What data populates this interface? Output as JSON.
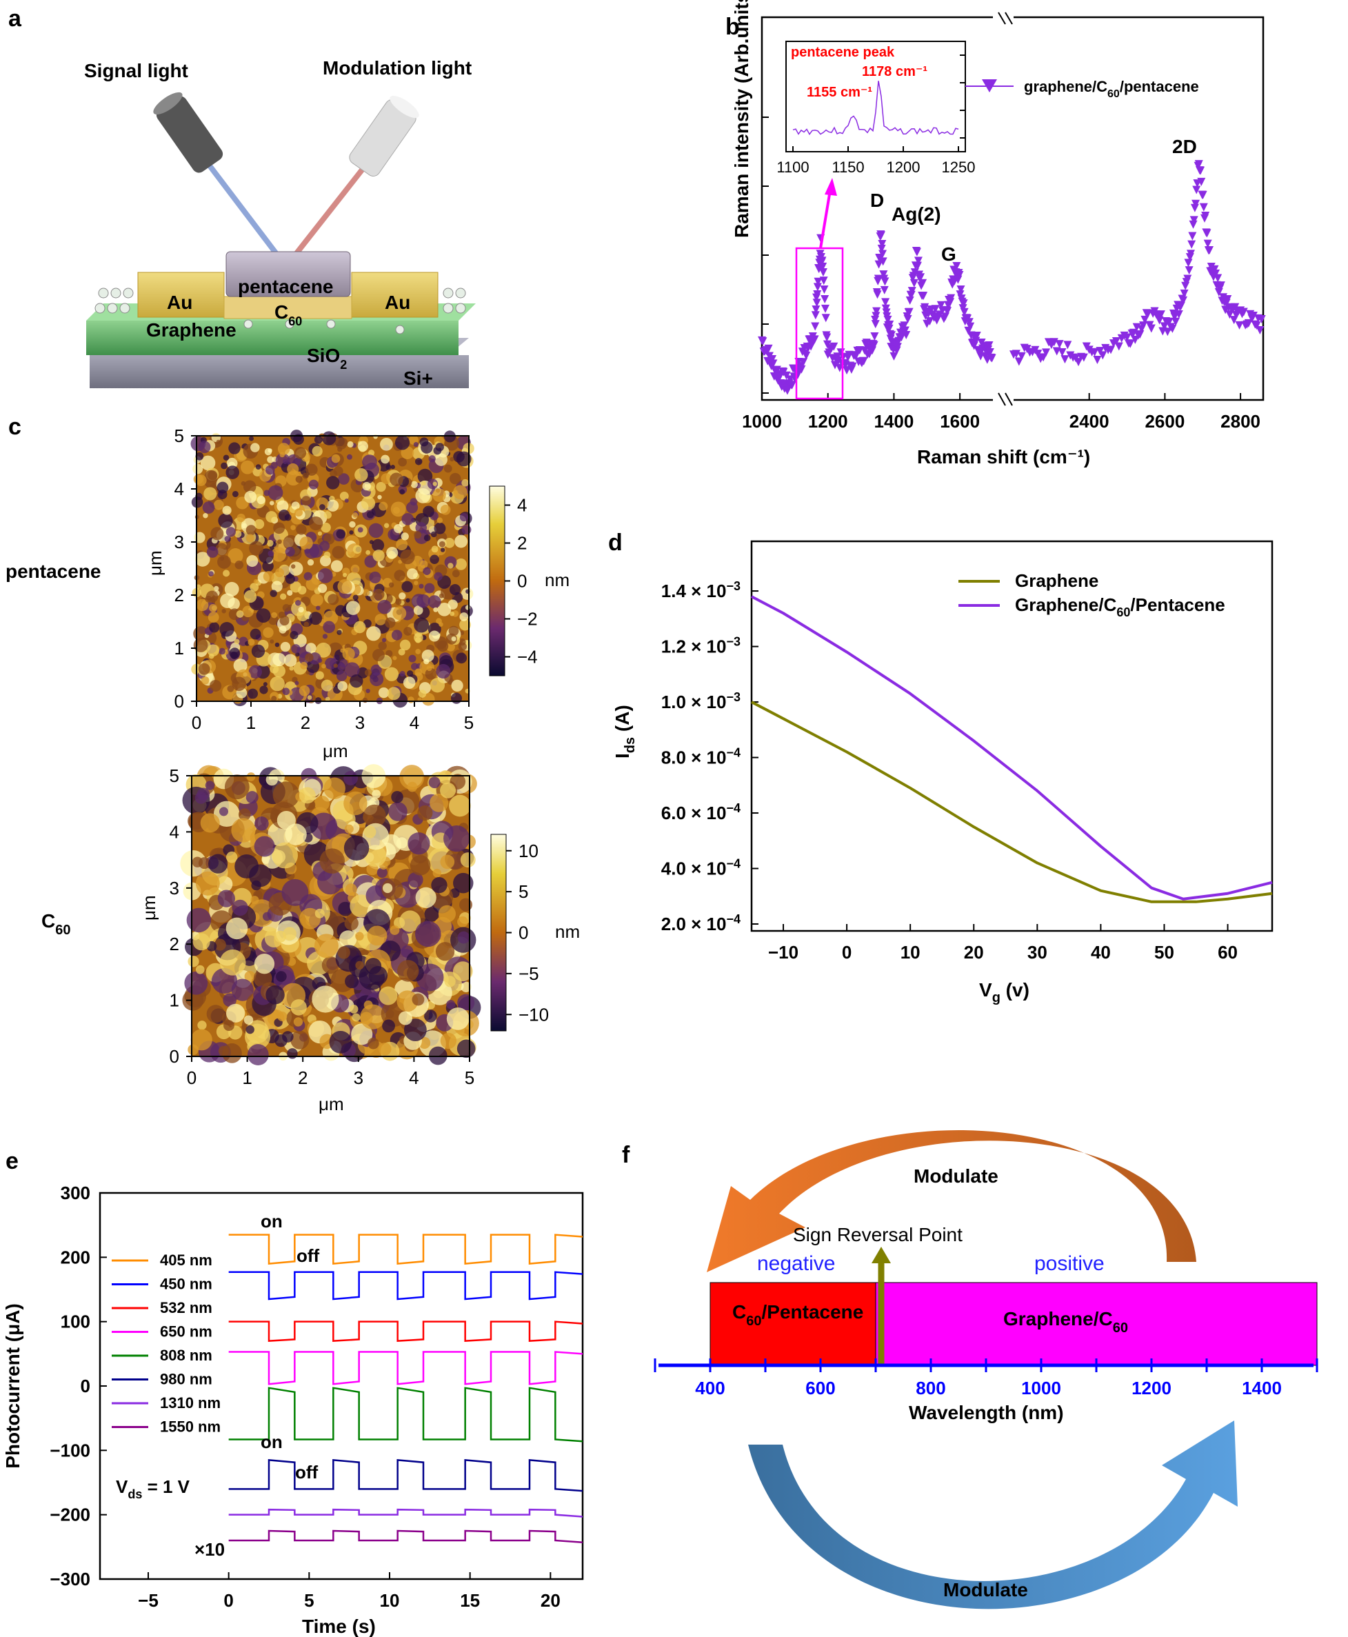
{
  "panel_a": {
    "label": "a",
    "signal_light": "Signal light",
    "modulation_light": "Modulation light",
    "layers": {
      "pentacene": "pentacene",
      "au": "Au",
      "c60": "C",
      "c60_sub": "60",
      "graphene": "Graphene",
      "sio2": "SiO",
      "sio2_sub": "2",
      "si": "Si+"
    }
  },
  "panel_b": {
    "label": "b",
    "inset_title": "pentacene peak",
    "peak1": "1155 cm⁻¹",
    "peak2": "1178 cm⁻¹",
    "legend": "graphene/C",
    "legend_sub": "60",
    "legend_tail": "/pentacene",
    "ylabel": "Raman intensity (Arb.units)",
    "xlabel": "Raman shift (cm⁻¹)",
    "peak_labels": [
      "D",
      "Ag(2)",
      "G",
      "2D"
    ],
    "color": "#8a2be2"
  },
  "panel_c": {
    "label": "c",
    "top_row_label": "pentacene",
    "bottom_row_label": "C",
    "bottom_row_sub": "60",
    "axis_unit": "μm",
    "bar_unit": "nm"
  },
  "panel_d": {
    "label": "d",
    "xlabel": "V",
    "xlabel_sub": "g",
    "xlabel_tail": " (v)",
    "ylabel": "I",
    "ylabel_sub": "ds",
    "ylabel_tail": " (A)",
    "legend1": "Graphene",
    "legend2": "Graphene/C",
    "legend2_sub": "60",
    "legend2_tail": "/Pentacene"
  },
  "panel_e": {
    "label": "e",
    "ylabel": "Photocurrent (μA)",
    "xlabel": "Time (s)",
    "on": "on",
    "off": "off",
    "vds": "V",
    "vds_sub": "ds",
    "vds_tail": " = 1 V",
    "x10": "×10"
  },
  "panel_f": {
    "label": "f",
    "modulate_top": "Modulate",
    "modulate_bottom": "Modulate",
    "sign_reversal": "Sign Reversal Point",
    "negative": "negative",
    "positive": "positive",
    "left_material": "C",
    "left_material_sub": "60",
    "left_material_tail": "/Pentacene",
    "right_material": "Graphene/C",
    "right_material_sub": "60",
    "xlabel": "Wavelength (nm)"
  },
  "chart_data": [
    {
      "type": "scatter",
      "panel": "b",
      "xlabel": "Raman shift (cm⁻¹)",
      "ylabel": "Raman intensity (Arb.units)",
      "x_ticks": [
        1000,
        1200,
        1400,
        1600,
        2400,
        2600,
        2800
      ],
      "series": [
        {
          "name": "graphene/C60/pentacene",
          "x": [
            1000,
            1040,
            1080,
            1120,
            1160,
            1178,
            1200,
            1250,
            1300,
            1340,
            1360,
            1380,
            1400,
            1440,
            1470,
            1500,
            1560,
            1590,
            1620,
            1660,
            1700,
            2200,
            2300,
            2400,
            2500,
            2560,
            2620,
            2660,
            2690,
            2720,
            2760,
            2800,
            2860
          ],
          "y": [
            0.15,
            0.05,
            0.0,
            0.08,
            0.18,
            0.47,
            0.12,
            0.07,
            0.1,
            0.15,
            0.5,
            0.22,
            0.1,
            0.2,
            0.43,
            0.22,
            0.25,
            0.4,
            0.2,
            0.12,
            0.1,
            0.1,
            0.12,
            0.1,
            0.16,
            0.22,
            0.2,
            0.35,
            0.73,
            0.4,
            0.28,
            0.22,
            0.2
          ]
        }
      ],
      "inset": {
        "x_ticks": [
          1100,
          1150,
          1200,
          1250
        ],
        "peaks": [
          1155,
          1178
        ]
      },
      "annotations": [
        "D",
        "Ag(2)",
        "G",
        "2D"
      ]
    },
    {
      "type": "heatmap",
      "panel": "c-top",
      "x_ticks": [
        0,
        1,
        2,
        3,
        4,
        5
      ],
      "y_ticks": [
        0,
        1,
        2,
        3,
        4,
        5
      ],
      "colorbar_ticks": [
        4,
        2,
        0,
        -2,
        -4
      ],
      "colorbar_range": [
        -5,
        5
      ]
    },
    {
      "type": "heatmap",
      "panel": "c-bottom",
      "x_ticks": [
        0,
        1,
        2,
        3,
        4,
        5
      ],
      "y_ticks": [
        0,
        1,
        2,
        3,
        4,
        5
      ],
      "colorbar_ticks": [
        10,
        5,
        0,
        -5,
        -10
      ],
      "colorbar_range": [
        -12,
        12
      ]
    },
    {
      "type": "line",
      "panel": "d",
      "xlim": [
        -15,
        67
      ],
      "ylim": [
        0.0002,
        0.0015
      ],
      "x_ticks": [
        -10,
        0,
        10,
        20,
        30,
        40,
        50,
        60
      ],
      "y_ticks": [
        {
          "v": 0.0002,
          "m": "2.0",
          "e": "−4"
        },
        {
          "v": 0.0004,
          "m": "4.0",
          "e": "−4"
        },
        {
          "v": 0.0006,
          "m": "6.0",
          "e": "−4"
        },
        {
          "v": 0.0008,
          "m": "8.0",
          "e": "−4"
        },
        {
          "v": 0.001,
          "m": "1.0",
          "e": "−3"
        },
        {
          "v": 0.0012,
          "m": "1.2",
          "e": "−3"
        },
        {
          "v": 0.0014,
          "m": "1.4",
          "e": "−3"
        }
      ],
      "series": [
        {
          "name": "Graphene",
          "color": "#7f7f00",
          "x": [
            -15,
            -10,
            0,
            10,
            20,
            30,
            40,
            48,
            55,
            60,
            67
          ],
          "y": [
            0.001,
            0.00094,
            0.00082,
            0.00069,
            0.00055,
            0.00042,
            0.00032,
            0.00028,
            0.00028,
            0.00029,
            0.00031
          ]
        },
        {
          "name": "Graphene/C60/Pentacene",
          "color": "#8a2be2",
          "x": [
            -15,
            -10,
            0,
            10,
            20,
            30,
            40,
            48,
            53,
            60,
            67
          ],
          "y": [
            0.00138,
            0.00132,
            0.00118,
            0.00103,
            0.00086,
            0.00068,
            0.00048,
            0.00033,
            0.00029,
            0.00031,
            0.00035
          ]
        }
      ]
    },
    {
      "type": "line",
      "panel": "e",
      "xlim": [
        -8,
        22
      ],
      "ylim": [
        -300,
        300
      ],
      "x_ticks": [
        -5,
        0,
        5,
        10,
        15,
        20
      ],
      "y_ticks": [
        -300,
        -200,
        -100,
        0,
        100,
        200,
        300
      ],
      "pulse_start_s": [
        2.5,
        6.5,
        10.5,
        14.7,
        18.7
      ],
      "pulse_width_s": 1.6,
      "series": [
        {
          "name": "405 nm",
          "color": "#ff8c00",
          "base": 235,
          "step": -45
        },
        {
          "name": "450 nm",
          "color": "#0000ff",
          "base": 177,
          "step": -42
        },
        {
          "name": "532 nm",
          "color": "#ff0000",
          "base": 100,
          "step": -30
        },
        {
          "name": "650 nm",
          "color": "#ff00ff",
          "base": 53,
          "step": -50
        },
        {
          "name": "808 nm",
          "color": "#008000",
          "base": -83,
          "step": 80
        },
        {
          "name": "980 nm",
          "color": "#00008b",
          "base": -160,
          "step": 45
        },
        {
          "name": "1310 nm",
          "color": "#8a2be2",
          "base": -200,
          "step": 8
        },
        {
          "name": "1550 nm",
          "color": "#8b008b",
          "base": -240,
          "step": 15
        }
      ]
    },
    {
      "type": "bar",
      "panel": "f",
      "x_ticks": [
        400,
        600,
        800,
        1000,
        1200,
        1400
      ],
      "xlim": [
        300,
        1500
      ],
      "regions": [
        {
          "from": 400,
          "to": 700,
          "color": "#ff0000"
        },
        {
          "from": 700,
          "to": 1500,
          "color": "#ff00ff"
        }
      ],
      "sign_reversal_nm": 700
    }
  ]
}
